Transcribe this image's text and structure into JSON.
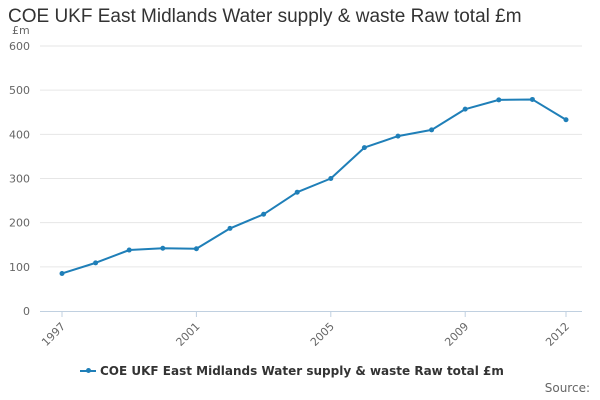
{
  "chart_data": {
    "type": "line",
    "title": "COE UKF East Midlands Water supply & waste Raw total £m",
    "ylabel": "£m",
    "xlabel": "",
    "ylim": [
      0,
      600
    ],
    "yticks": [
      0,
      100,
      200,
      300,
      400,
      500,
      600
    ],
    "xticks": [
      "1997",
      "2001",
      "2005",
      "2009",
      "2012"
    ],
    "grid": true,
    "legend_position": "bottom",
    "x": [
      1997,
      1998,
      1999,
      2000,
      2001,
      2002,
      2003,
      2004,
      2005,
      2006,
      2007,
      2008,
      2009,
      2010,
      2011,
      2012
    ],
    "series": [
      {
        "name": "COE UKF East Midlands Water supply & waste Raw total £m",
        "color": "#1f7fb8",
        "values": [
          85,
          109,
          138,
          142,
          141,
          187,
          219,
          269,
          300,
          370,
          396,
          410,
          457,
          478,
          479,
          433
        ]
      }
    ]
  },
  "footer": {
    "source_label": "Source:"
  }
}
